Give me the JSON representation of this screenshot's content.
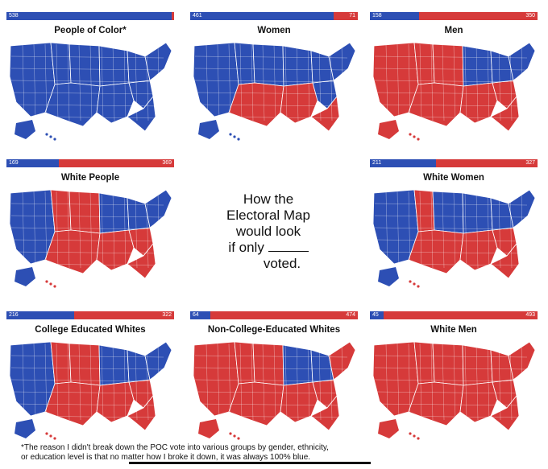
{
  "center_text": {
    "line1": "How the",
    "line2": "Electoral Map",
    "line3": "would look",
    "line4": "if only",
    "line5": "voted."
  },
  "footnote": {
    "line1": "*The reason I didn't break down the POC vote into various groups by gender, ethnicity,",
    "line2": "or education level is that no matter how I broke it down, it was always 100% blue."
  },
  "colors": {
    "blue": "#2d4fb4",
    "red": "#d63a3a"
  },
  "panels": [
    {
      "title": "People of Color*",
      "blue": 538,
      "red": 0,
      "blue_label": "538",
      "red_label": "",
      "west": "blue",
      "plains": "blue",
      "midwest": "blue",
      "south": "blue",
      "northeast": "blue"
    },
    {
      "title": "Women",
      "blue": 461,
      "red": 71,
      "blue_label": "461",
      "red_label": "71",
      "west": "blue",
      "plains": "mixed",
      "midwest": "blue",
      "south": "mixed",
      "northeast": "blue"
    },
    {
      "title": "Men",
      "blue": 158,
      "red": 350,
      "blue_label": "158",
      "red_label": "350",
      "west": "red",
      "plains": "red",
      "midwest": "mixed",
      "south": "red",
      "northeast": "blue"
    },
    {
      "title": "White People",
      "blue": 169,
      "red": 369,
      "blue_label": "169",
      "red_label": "369",
      "west": "mixed",
      "plains": "red",
      "midwest": "mixed",
      "south": "red",
      "northeast": "blue"
    },
    {
      "title": "White Women",
      "blue": 211,
      "red": 327,
      "blue_label": "211",
      "red_label": "327",
      "west": "mixed",
      "plains": "mixed",
      "midwest": "blue",
      "south": "red",
      "northeast": "blue"
    },
    {
      "title": "College Educated Whites",
      "blue": 216,
      "red": 322,
      "blue_label": "216",
      "red_label": "322",
      "west": "mixed",
      "plains": "red",
      "midwest": "mixed",
      "south": "red",
      "northeast": "blue"
    },
    {
      "title": "Non-College-Educated Whites",
      "blue": 64,
      "red": 474,
      "blue_label": "64",
      "red_label": "474",
      "west": "red",
      "plains": "red",
      "midwest": "mixed",
      "south": "red",
      "northeast": "mixed"
    },
    {
      "title": "White Men",
      "blue": 45,
      "red": 493,
      "blue_label": "45",
      "red_label": "493",
      "west": "red",
      "plains": "red",
      "midwest": "red",
      "south": "red",
      "northeast": "mixed"
    }
  ]
}
